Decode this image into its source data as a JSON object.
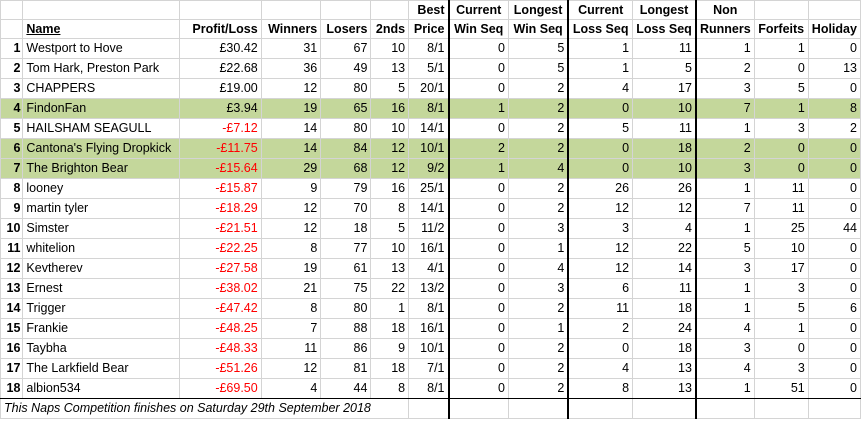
{
  "headers": {
    "name": "Name",
    "profit_loss": "Profit/Loss",
    "winners": "Winners",
    "losers": "Losers",
    "seconds": "2nds",
    "best_price": [
      "Best",
      "Price"
    ],
    "current_win_seq": [
      "Current",
      "Win Seq"
    ],
    "longest_win_seq": [
      "Longest",
      "Win Seq"
    ],
    "current_loss_seq": [
      "Current",
      "Loss Seq"
    ],
    "longest_loss_seq": [
      "Longest",
      "Loss Seq"
    ],
    "non_runners": [
      "Non",
      "Runners"
    ],
    "forfeits": "Forfeits",
    "holiday": "Holiday"
  },
  "rows": [
    {
      "rank": "1",
      "name": "Westport to Hove",
      "pl": "£30.42",
      "neg": false,
      "winners": "31",
      "losers": "67",
      "seconds": "10",
      "best": "8/1",
      "cws": "0",
      "lws": "5",
      "cls": "1",
      "lls": "11",
      "nr": "1",
      "forfeits": "1",
      "holiday": "0",
      "highlight": false
    },
    {
      "rank": "2",
      "name": "Tom Hark, Preston Park",
      "pl": "£22.68",
      "neg": false,
      "winners": "36",
      "losers": "49",
      "seconds": "13",
      "best": "5/1",
      "cws": "0",
      "lws": "5",
      "cls": "1",
      "lls": "5",
      "nr": "2",
      "forfeits": "0",
      "holiday": "13",
      "highlight": false
    },
    {
      "rank": "3",
      "name": "CHAPPERS",
      "pl": "£19.00",
      "neg": false,
      "winners": "12",
      "losers": "80",
      "seconds": "5",
      "best": "20/1",
      "cws": "0",
      "lws": "2",
      "cls": "4",
      "lls": "17",
      "nr": "3",
      "forfeits": "5",
      "holiday": "0",
      "highlight": false
    },
    {
      "rank": "4",
      "name": "FindonFan",
      "pl": "£3.94",
      "neg": false,
      "winners": "19",
      "losers": "65",
      "seconds": "16",
      "best": "8/1",
      "cws": "1",
      "lws": "2",
      "cls": "0",
      "lls": "10",
      "nr": "7",
      "forfeits": "1",
      "holiday": "8",
      "highlight": true
    },
    {
      "rank": "5",
      "name": "HAILSHAM SEAGULL",
      "pl": "-£7.12",
      "neg": true,
      "winners": "14",
      "losers": "80",
      "seconds": "10",
      "best": "14/1",
      "cws": "0",
      "lws": "2",
      "cls": "5",
      "lls": "11",
      "nr": "1",
      "forfeits": "3",
      "holiday": "2",
      "highlight": false
    },
    {
      "rank": "6",
      "name": "Cantona's Flying Dropkick",
      "pl": "-£11.75",
      "neg": true,
      "winners": "14",
      "losers": "84",
      "seconds": "12",
      "best": "10/1",
      "cws": "2",
      "lws": "2",
      "cls": "0",
      "lls": "18",
      "nr": "2",
      "forfeits": "0",
      "holiday": "0",
      "highlight": true
    },
    {
      "rank": "7",
      "name": "The Brighton Bear",
      "pl": "-£15.64",
      "neg": true,
      "winners": "29",
      "losers": "68",
      "seconds": "12",
      "best": "9/2",
      "cws": "1",
      "lws": "4",
      "cls": "0",
      "lls": "10",
      "nr": "3",
      "forfeits": "0",
      "holiday": "0",
      "highlight": true
    },
    {
      "rank": "8",
      "name": "looney",
      "pl": "-£15.87",
      "neg": true,
      "winners": "9",
      "losers": "79",
      "seconds": "16",
      "best": "25/1",
      "cws": "0",
      "lws": "2",
      "cls": "26",
      "lls": "26",
      "nr": "1",
      "forfeits": "11",
      "holiday": "0",
      "highlight": false
    },
    {
      "rank": "9",
      "name": "martin tyler",
      "pl": "-£18.29",
      "neg": true,
      "winners": "12",
      "losers": "70",
      "seconds": "8",
      "best": "14/1",
      "cws": "0",
      "lws": "2",
      "cls": "12",
      "lls": "12",
      "nr": "7",
      "forfeits": "11",
      "holiday": "0",
      "highlight": false
    },
    {
      "rank": "10",
      "name": "Simster",
      "pl": "-£21.51",
      "neg": true,
      "winners": "12",
      "losers": "18",
      "seconds": "5",
      "best": "11/2",
      "cws": "0",
      "lws": "3",
      "cls": "3",
      "lls": "4",
      "nr": "1",
      "forfeits": "25",
      "holiday": "44",
      "highlight": false
    },
    {
      "rank": "11",
      "name": "whitelion",
      "pl": "-£22.25",
      "neg": true,
      "winners": "8",
      "losers": "77",
      "seconds": "10",
      "best": "16/1",
      "cws": "0",
      "lws": "1",
      "cls": "12",
      "lls": "22",
      "nr": "5",
      "forfeits": "10",
      "holiday": "0",
      "highlight": false
    },
    {
      "rank": "12",
      "name": "Kevtherev",
      "pl": "-£27.58",
      "neg": true,
      "winners": "19",
      "losers": "61",
      "seconds": "13",
      "best": "4/1",
      "cws": "0",
      "lws": "4",
      "cls": "12",
      "lls": "14",
      "nr": "3",
      "forfeits": "17",
      "holiday": "0",
      "highlight": false
    },
    {
      "rank": "13",
      "name": "Ernest",
      "pl": "-£38.02",
      "neg": true,
      "winners": "21",
      "losers": "75",
      "seconds": "22",
      "best": "13/2",
      "cws": "0",
      "lws": "3",
      "cls": "6",
      "lls": "11",
      "nr": "1",
      "forfeits": "3",
      "holiday": "0",
      "highlight": false
    },
    {
      "rank": "14",
      "name": "Trigger",
      "pl": "-£47.42",
      "neg": true,
      "winners": "8",
      "losers": "80",
      "seconds": "1",
      "best": "8/1",
      "cws": "0",
      "lws": "2",
      "cls": "11",
      "lls": "18",
      "nr": "1",
      "forfeits": "5",
      "holiday": "6",
      "highlight": false
    },
    {
      "rank": "15",
      "name": "Frankie",
      "pl": "-£48.25",
      "neg": true,
      "winners": "7",
      "losers": "88",
      "seconds": "18",
      "best": "16/1",
      "cws": "0",
      "lws": "1",
      "cls": "2",
      "lls": "24",
      "nr": "4",
      "forfeits": "1",
      "holiday": "0",
      "highlight": false
    },
    {
      "rank": "16",
      "name": "Taybha",
      "pl": "-£48.33",
      "neg": true,
      "winners": "11",
      "losers": "86",
      "seconds": "9",
      "best": "10/1",
      "cws": "0",
      "lws": "2",
      "cls": "0",
      "lls": "18",
      "nr": "3",
      "forfeits": "0",
      "holiday": "0",
      "highlight": false
    },
    {
      "rank": "17",
      "name": "The Larkfield Bear",
      "pl": "-£51.26",
      "neg": true,
      "winners": "12",
      "losers": "81",
      "seconds": "18",
      "best": "7/1",
      "cws": "0",
      "lws": "2",
      "cls": "4",
      "lls": "13",
      "nr": "4",
      "forfeits": "3",
      "holiday": "0",
      "highlight": false
    },
    {
      "rank": "18",
      "name": "albion534",
      "pl": "-£69.50",
      "neg": true,
      "winners": "4",
      "losers": "44",
      "seconds": "8",
      "best": "8/1",
      "cws": "0",
      "lws": "2",
      "cls": "8",
      "lls": "13",
      "nr": "1",
      "forfeits": "51",
      "holiday": "0",
      "highlight": false
    }
  ],
  "footer": "This Naps Competition finishes on Saturday 29th September 2018",
  "colors": {
    "highlight": "#c4d79b",
    "negative": "#ff0000"
  }
}
